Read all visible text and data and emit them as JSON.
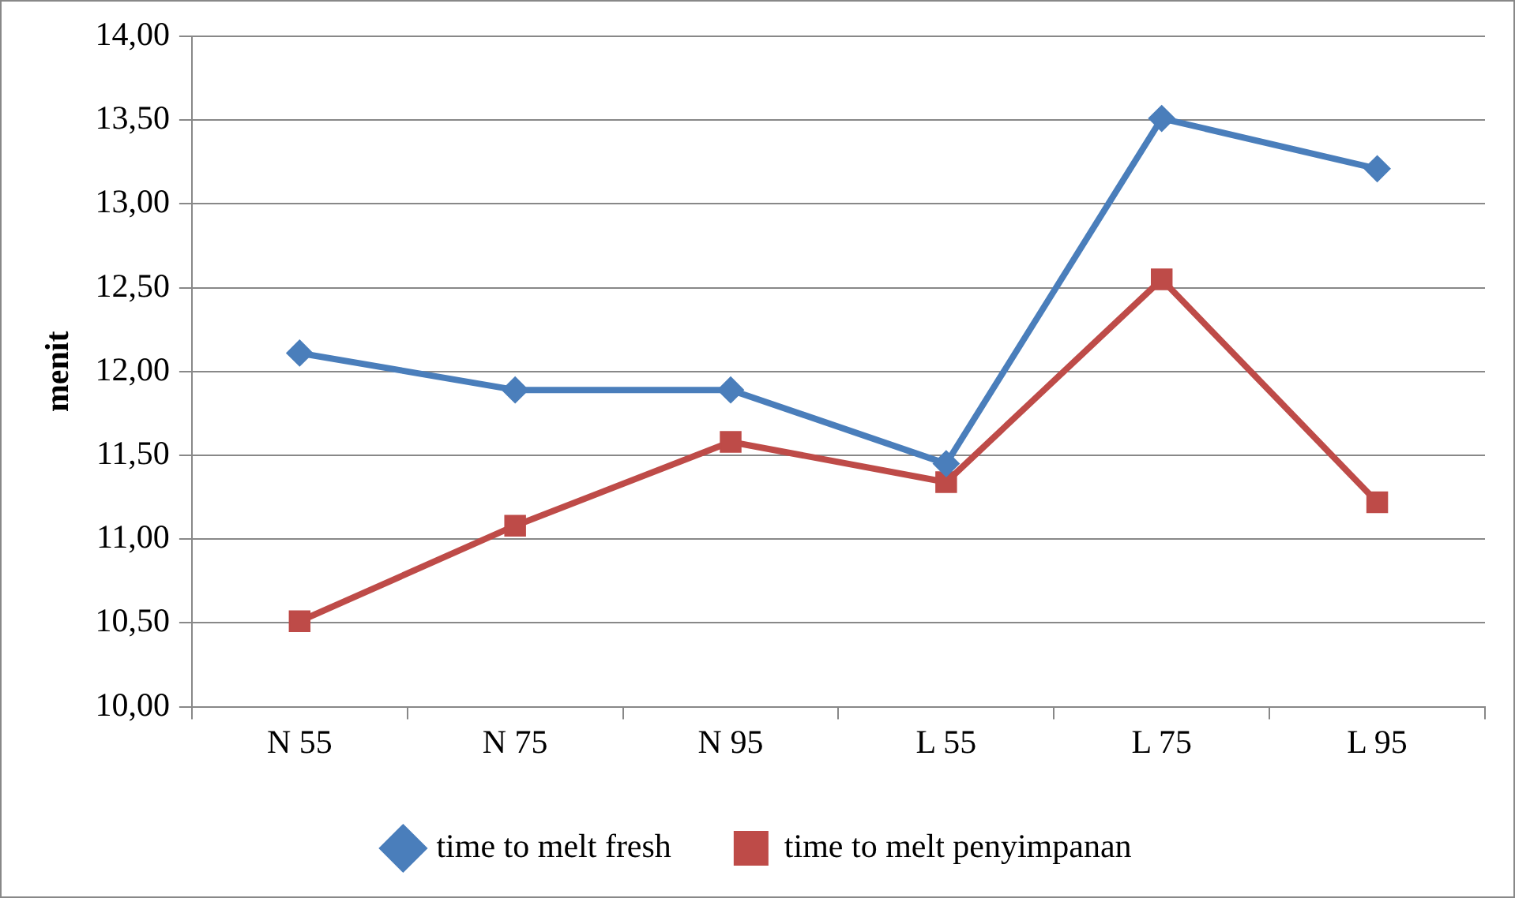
{
  "chart_data": {
    "type": "line",
    "ylabel": "menit",
    "categories": [
      "N 55",
      "N 75",
      "N 95",
      "L 55",
      "L 75",
      "L 95"
    ],
    "series": [
      {
        "name": "time to melt fresh",
        "color": "#4a7ebb",
        "marker": "diamond",
        "values": [
          12.11,
          11.89,
          11.89,
          11.45,
          13.51,
          13.21
        ]
      },
      {
        "name": "time to melt penyimpanan",
        "color": "#be4b48",
        "marker": "square",
        "values": [
          10.51,
          11.08,
          11.58,
          11.34,
          12.55,
          11.22
        ]
      }
    ],
    "ylim": [
      10,
      14
    ],
    "yticks": [
      {
        "value": 10,
        "label": "10,00"
      },
      {
        "value": 10.5,
        "label": "10,50"
      },
      {
        "value": 11,
        "label": "11,00"
      },
      {
        "value": 11.5,
        "label": "11,50"
      },
      {
        "value": 12,
        "label": "12,00"
      },
      {
        "value": 12.5,
        "label": "12,50"
      },
      {
        "value": 13,
        "label": "13,00"
      },
      {
        "value": 13.5,
        "label": "13,50"
      },
      {
        "value": 14,
        "label": "14,00"
      }
    ],
    "grid": "y",
    "legend": "bottom",
    "line_style": "solid"
  }
}
